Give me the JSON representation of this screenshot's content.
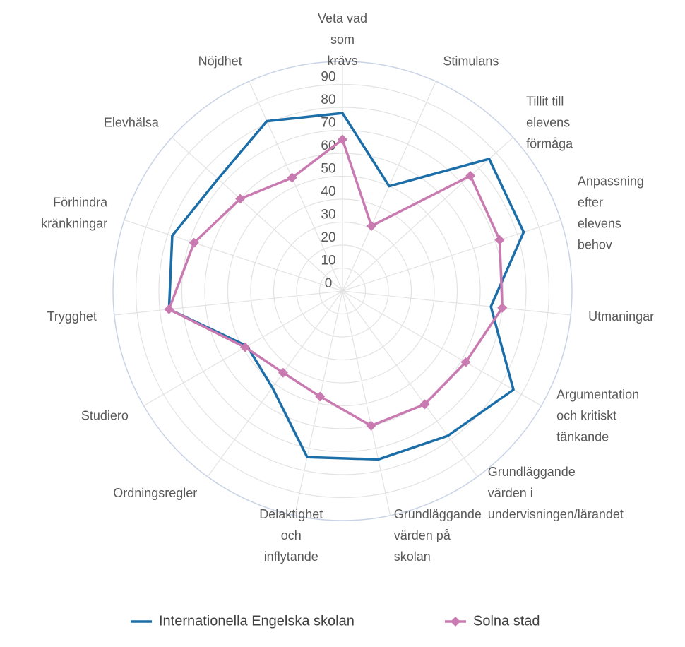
{
  "chart_data": {
    "type": "radar",
    "categories": [
      [
        "Veta vad",
        "som",
        "krävs"
      ],
      [
        "Stimulans"
      ],
      [
        "Tillit till",
        "elevens",
        "förmåga"
      ],
      [
        "Anpassning",
        "efter",
        "elevens",
        "behov"
      ],
      [
        "Utmaningar"
      ],
      [
        "Argumentation",
        "och kritiskt",
        "tänkande"
      ],
      [
        "Grundläggande",
        "värden i",
        "undervisningen/lärandet"
      ],
      [
        "Grundläggande",
        "värden på",
        "skolan"
      ],
      [
        "Delaktighet",
        "och",
        "inflytande"
      ],
      [
        "Ordningsregler"
      ],
      [
        "Studiero"
      ],
      [
        "Trygghet"
      ],
      [
        "Förhindra",
        "kränkningar"
      ],
      [
        "Elevhälsa"
      ],
      [
        "Nöjdhet"
      ]
    ],
    "series": [
      {
        "name": "Internationella Engelska skolan",
        "color": "#1b6ea8",
        "marker": "none",
        "values": [
          77.5,
          50,
          86,
          83,
          65,
          86,
          78,
          75,
          74,
          52,
          48,
          76,
          78,
          73,
          81
        ]
      },
      {
        "name": "Solna stad",
        "color": "#c97bb1",
        "marker": "diamond",
        "values": [
          66,
          31,
          75,
          72,
          70,
          62,
          61,
          60,
          47,
          44,
          49,
          76,
          68,
          60,
          54
        ]
      }
    ],
    "rlim": [
      0,
      100
    ],
    "rticks": [
      0,
      10,
      20,
      30,
      40,
      50,
      60,
      70,
      80,
      90
    ],
    "grid": true,
    "legend": "bottom"
  }
}
